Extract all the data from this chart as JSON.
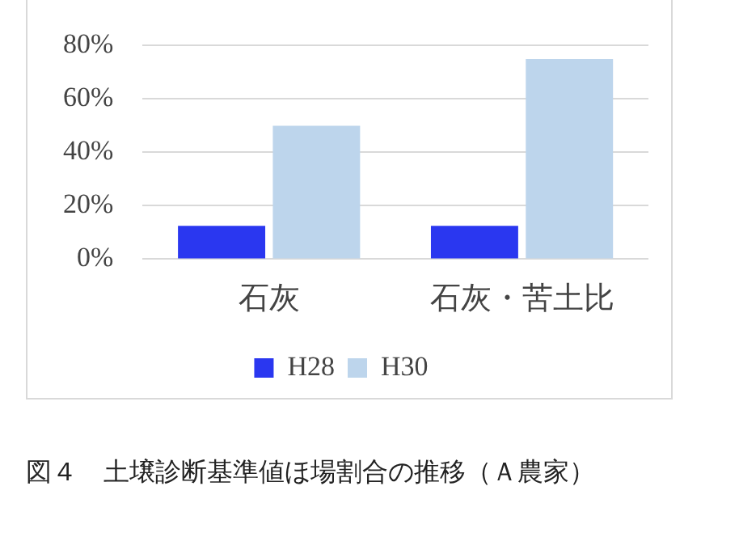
{
  "chart_data": {
    "type": "bar",
    "title": "図４　土壌診断基準値ほ場割合の推移（Ａ農家）",
    "categories": [
      "石灰",
      "石灰・苦土比"
    ],
    "series": [
      {
        "name": "H28",
        "color": "#2a37f0",
        "values": [
          12.5,
          12.5
        ]
      },
      {
        "name": "H30",
        "color": "#bdd5ec",
        "values": [
          50,
          75
        ]
      }
    ],
    "ylim": [
      0,
      80
    ],
    "yticks": [
      {
        "value": 0,
        "label": "0%"
      },
      {
        "value": 20,
        "label": "20%"
      },
      {
        "value": 40,
        "label": "40%"
      },
      {
        "value": 60,
        "label": "60%"
      },
      {
        "value": 80,
        "label": "80%"
      }
    ],
    "grid": "y",
    "legend": "bottom"
  }
}
